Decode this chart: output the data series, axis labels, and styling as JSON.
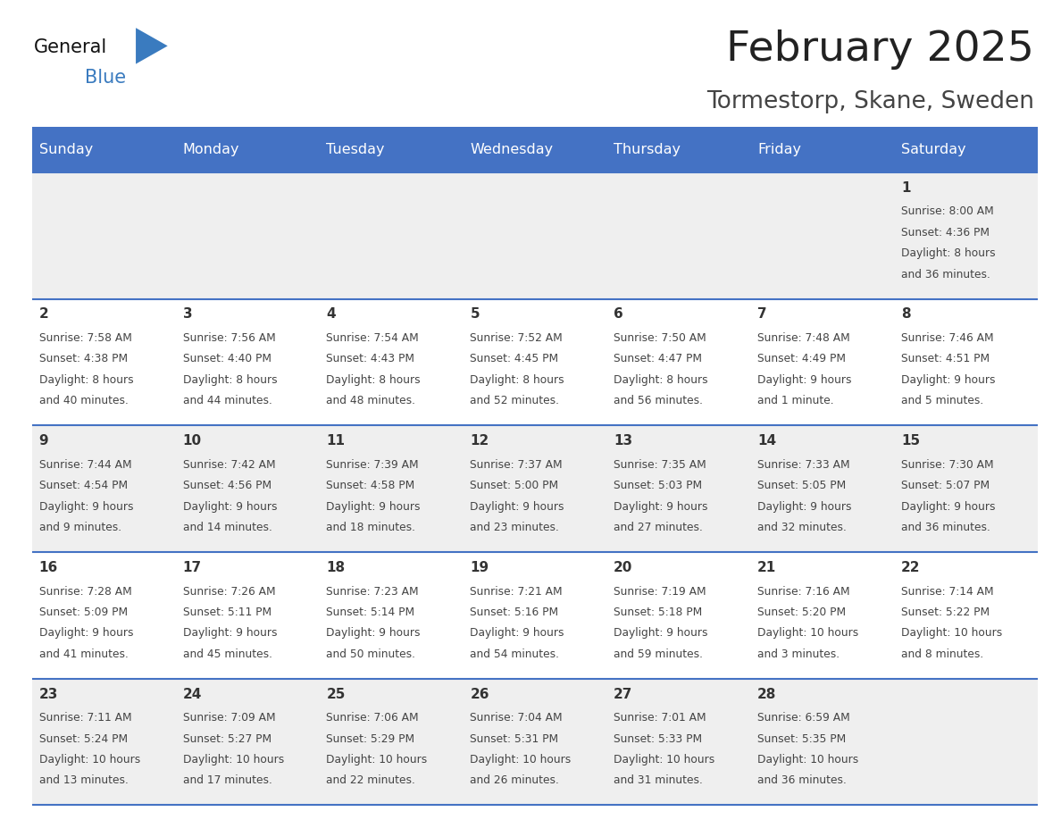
{
  "title": "February 2025",
  "subtitle": "Tormestorp, Skane, Sweden",
  "days_of_week": [
    "Sunday",
    "Monday",
    "Tuesday",
    "Wednesday",
    "Thursday",
    "Friday",
    "Saturday"
  ],
  "header_bg": "#4472C4",
  "header_text": "#FFFFFF",
  "row_bg_even": "#EFEFEF",
  "row_bg_odd": "#FFFFFF",
  "separator_color": "#4472C4",
  "day_number_color": "#333333",
  "info_text_color": "#444444",
  "title_color": "#222222",
  "subtitle_color": "#444444",
  "logo_general_color": "#111111",
  "logo_blue_color": "#3a7bbf",
  "calendar_data": [
    [
      null,
      null,
      null,
      null,
      null,
      null,
      {
        "day": 1,
        "sunrise": "8:00 AM",
        "sunset": "4:36 PM",
        "daylight": "8 hours\nand 36 minutes."
      }
    ],
    [
      {
        "day": 2,
        "sunrise": "7:58 AM",
        "sunset": "4:38 PM",
        "daylight": "8 hours\nand 40 minutes."
      },
      {
        "day": 3,
        "sunrise": "7:56 AM",
        "sunset": "4:40 PM",
        "daylight": "8 hours\nand 44 minutes."
      },
      {
        "day": 4,
        "sunrise": "7:54 AM",
        "sunset": "4:43 PM",
        "daylight": "8 hours\nand 48 minutes."
      },
      {
        "day": 5,
        "sunrise": "7:52 AM",
        "sunset": "4:45 PM",
        "daylight": "8 hours\nand 52 minutes."
      },
      {
        "day": 6,
        "sunrise": "7:50 AM",
        "sunset": "4:47 PM",
        "daylight": "8 hours\nand 56 minutes."
      },
      {
        "day": 7,
        "sunrise": "7:48 AM",
        "sunset": "4:49 PM",
        "daylight": "9 hours\nand 1 minute."
      },
      {
        "day": 8,
        "sunrise": "7:46 AM",
        "sunset": "4:51 PM",
        "daylight": "9 hours\nand 5 minutes."
      }
    ],
    [
      {
        "day": 9,
        "sunrise": "7:44 AM",
        "sunset": "4:54 PM",
        "daylight": "9 hours\nand 9 minutes."
      },
      {
        "day": 10,
        "sunrise": "7:42 AM",
        "sunset": "4:56 PM",
        "daylight": "9 hours\nand 14 minutes."
      },
      {
        "day": 11,
        "sunrise": "7:39 AM",
        "sunset": "4:58 PM",
        "daylight": "9 hours\nand 18 minutes."
      },
      {
        "day": 12,
        "sunrise": "7:37 AM",
        "sunset": "5:00 PM",
        "daylight": "9 hours\nand 23 minutes."
      },
      {
        "day": 13,
        "sunrise": "7:35 AM",
        "sunset": "5:03 PM",
        "daylight": "9 hours\nand 27 minutes."
      },
      {
        "day": 14,
        "sunrise": "7:33 AM",
        "sunset": "5:05 PM",
        "daylight": "9 hours\nand 32 minutes."
      },
      {
        "day": 15,
        "sunrise": "7:30 AM",
        "sunset": "5:07 PM",
        "daylight": "9 hours\nand 36 minutes."
      }
    ],
    [
      {
        "day": 16,
        "sunrise": "7:28 AM",
        "sunset": "5:09 PM",
        "daylight": "9 hours\nand 41 minutes."
      },
      {
        "day": 17,
        "sunrise": "7:26 AM",
        "sunset": "5:11 PM",
        "daylight": "9 hours\nand 45 minutes."
      },
      {
        "day": 18,
        "sunrise": "7:23 AM",
        "sunset": "5:14 PM",
        "daylight": "9 hours\nand 50 minutes."
      },
      {
        "day": 19,
        "sunrise": "7:21 AM",
        "sunset": "5:16 PM",
        "daylight": "9 hours\nand 54 minutes."
      },
      {
        "day": 20,
        "sunrise": "7:19 AM",
        "sunset": "5:18 PM",
        "daylight": "9 hours\nand 59 minutes."
      },
      {
        "day": 21,
        "sunrise": "7:16 AM",
        "sunset": "5:20 PM",
        "daylight": "10 hours\nand 3 minutes."
      },
      {
        "day": 22,
        "sunrise": "7:14 AM",
        "sunset": "5:22 PM",
        "daylight": "10 hours\nand 8 minutes."
      }
    ],
    [
      {
        "day": 23,
        "sunrise": "7:11 AM",
        "sunset": "5:24 PM",
        "daylight": "10 hours\nand 13 minutes."
      },
      {
        "day": 24,
        "sunrise": "7:09 AM",
        "sunset": "5:27 PM",
        "daylight": "10 hours\nand 17 minutes."
      },
      {
        "day": 25,
        "sunrise": "7:06 AM",
        "sunset": "5:29 PM",
        "daylight": "10 hours\nand 22 minutes."
      },
      {
        "day": 26,
        "sunrise": "7:04 AM",
        "sunset": "5:31 PM",
        "daylight": "10 hours\nand 26 minutes."
      },
      {
        "day": 27,
        "sunrise": "7:01 AM",
        "sunset": "5:33 PM",
        "daylight": "10 hours\nand 31 minutes."
      },
      {
        "day": 28,
        "sunrise": "6:59 AM",
        "sunset": "5:35 PM",
        "daylight": "10 hours\nand 36 minutes."
      },
      null
    ]
  ],
  "figsize": [
    11.88,
    9.18
  ],
  "dpi": 100
}
